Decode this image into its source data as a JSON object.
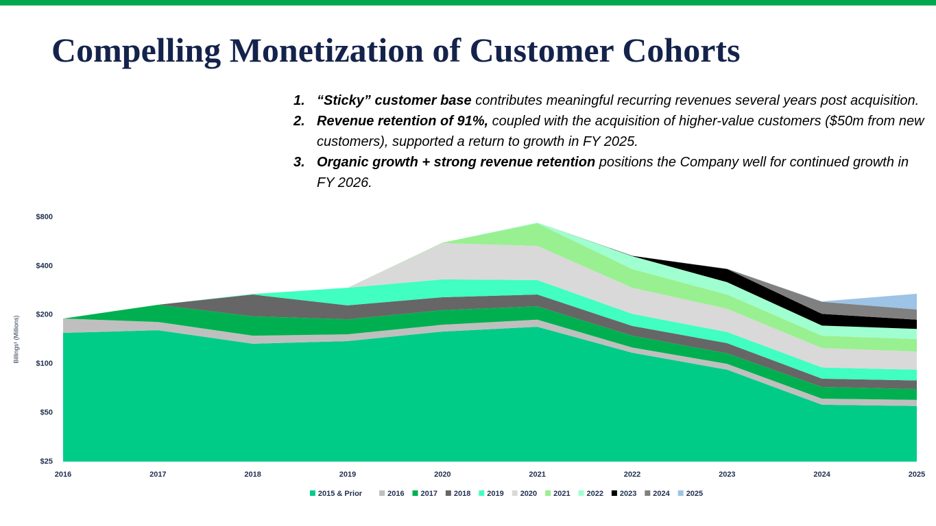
{
  "header": {
    "title": "Compelling Monetization of Customer Cohorts"
  },
  "bullets": [
    {
      "number": "1.",
      "bold": "“Sticky” customer base",
      "text": "contributes meaningful recurring revenues several years post acquisition."
    },
    {
      "number": "2.",
      "bold": "Revenue retention of 91%,",
      "text": "coupled with the acquisition of higher-value customers ($50m from new customers), supported a return to growth in FY 2025."
    },
    {
      "number": "3.",
      "bold": "Organic growth + strong revenue retention",
      "text": "positions the Company well for continued growth in FY 2026."
    }
  ],
  "chart_data": {
    "type": "area",
    "stacked": true,
    "log_scale": true,
    "ylabel": "Billings¹ (Millions)",
    "categories": [
      "2016",
      "2017",
      "2018",
      "2019",
      "2020",
      "2021",
      "2022",
      "2023",
      "2024",
      "2025"
    ],
    "ylim": [
      25,
      800
    ],
    "yticks": [
      {
        "value": 25,
        "label": "$25"
      },
      {
        "value": 50,
        "label": "$50"
      },
      {
        "value": 100,
        "label": "$100"
      },
      {
        "value": 200,
        "label": "$200"
      },
      {
        "value": 400,
        "label": "$400"
      },
      {
        "value": 800,
        "label": "$800"
      }
    ],
    "legend": "bottom",
    "series": [
      {
        "name": "2015 & Prior",
        "color": "#00cc88",
        "values": [
          155,
          161,
          133,
          138,
          158,
          169,
          117,
          92,
          56,
          55
        ]
      },
      {
        "name": "2016",
        "color": "#bfbfbf",
        "values": [
          35,
          20,
          16,
          14,
          16,
          18,
          9,
          8,
          5,
          5
        ]
      },
      {
        "name": "2017",
        "color": "#00b050",
        "values": [
          null,
          50,
          47,
          36,
          40,
          39,
          23,
          16,
          11,
          10
        ]
      },
      {
        "name": "2018",
        "color": "#666666",
        "values": [
          null,
          null,
          71,
          41,
          43,
          41,
          22,
          18,
          9,
          9
        ]
      },
      {
        "name": "2019",
        "color": "#40ffc0",
        "values": [
          null,
          null,
          2,
          65,
          74,
          61,
          32,
          23,
          14,
          13
        ]
      },
      {
        "name": "2020",
        "color": "#d9d9d9",
        "values": [
          null,
          null,
          null,
          null,
          222,
          204,
          91,
          61,
          30,
          27
        ]
      },
      {
        "name": "2021",
        "color": "#99f090",
        "values": [
          null,
          null,
          null,
          null,
          4,
          201,
          89,
          49,
          24,
          23
        ]
      },
      {
        "name": "2022",
        "color": "#a0ffd0",
        "values": [
          null,
          null,
          null,
          null,
          null,
          7,
          77,
          51,
          23,
          22
        ]
      },
      {
        "name": "2023",
        "color": "#000000",
        "values": [
          null,
          null,
          null,
          null,
          null,
          null,
          2,
          65,
          31,
          23
        ]
      },
      {
        "name": "2024",
        "color": "#808080",
        "values": [
          null,
          null,
          null,
          null,
          null,
          null,
          null,
          2,
          38,
          29
        ]
      },
      {
        "name": "2025",
        "color": "#9dc3e6",
        "values": [
          null,
          null,
          null,
          null,
          null,
          null,
          null,
          null,
          1,
          54
        ]
      }
    ]
  }
}
